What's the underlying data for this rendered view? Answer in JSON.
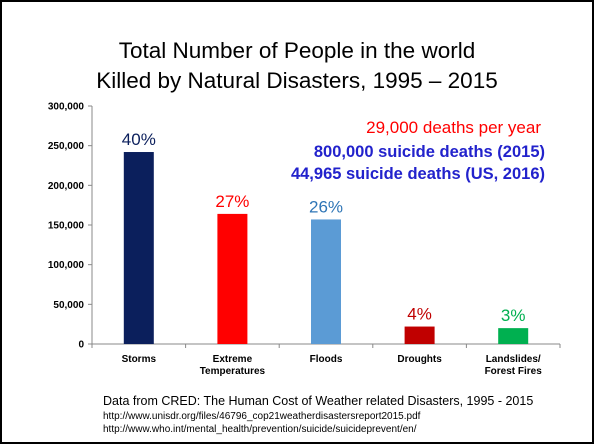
{
  "title": {
    "line1": "Total Number of People in the world",
    "line2": "Killed by Natural Disasters, 1995 – 2015"
  },
  "annotations": {
    "line1": "29,000 deaths per year",
    "line2": "800,000 suicide deaths (2015)",
    "line3": "44,965 suicide deaths (US, 2016)"
  },
  "source": {
    "text": "Data from CRED: The Human Cost of Weather related Disasters, 1995 - 2015",
    "url1": "http://www.unisdr.org/files/46796_cop21weatherdisastersreport2015.pdf",
    "url2": "http://www.who.int/mental_health/prevention/suicide/suicideprevent/en/"
  },
  "chart_data": {
    "type": "bar",
    "title": "Total Number of People in the world Killed by Natural Disasters, 1995 – 2015",
    "xlabel": "",
    "ylabel": "",
    "ylim": [
      0,
      300000
    ],
    "yticks": [
      0,
      50000,
      100000,
      150000,
      200000,
      250000,
      300000
    ],
    "ytick_labels": [
      "0",
      "50,000",
      "100,000",
      "150,000",
      "200,000",
      "250,000",
      "300,000"
    ],
    "grid": false,
    "categories": [
      [
        "Storms"
      ],
      [
        "Extreme",
        "Temperatures"
      ],
      [
        "Floods"
      ],
      [
        "Droughts"
      ],
      [
        "Landslides/",
        "Forest Fires"
      ]
    ],
    "values": [
      242000,
      164000,
      157000,
      22000,
      20000
    ],
    "data_labels": [
      "40%",
      "27%",
      "26%",
      "4%",
      "3%"
    ],
    "bar_colors": [
      "#0b1f5c",
      "#ff0000",
      "#5b9bd5",
      "#c00000",
      "#00b050"
    ],
    "label_colors": [
      "#0b1f5c",
      "#ff0000",
      "#2e75b6",
      "#c00000",
      "#00b050"
    ]
  }
}
